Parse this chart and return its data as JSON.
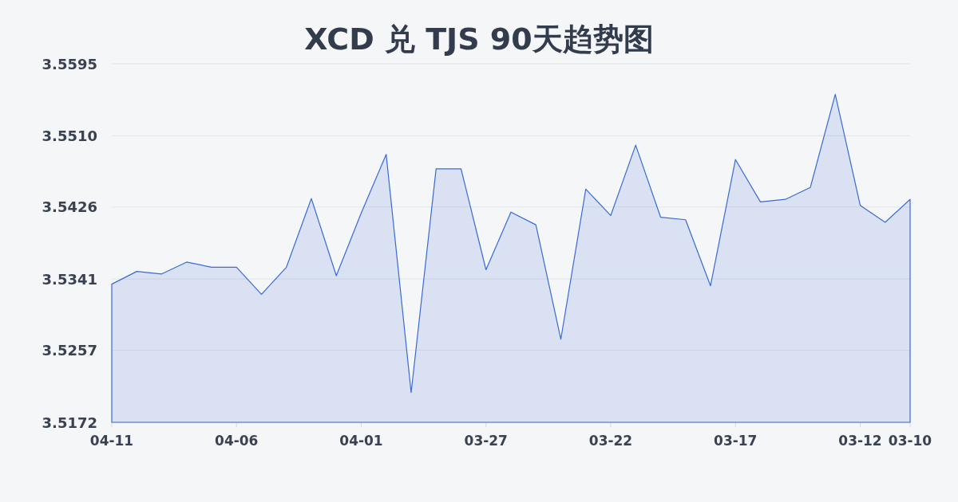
{
  "chart_data": {
    "type": "area",
    "title": "XCD 兑 TJS 90天趋势图",
    "categories": [
      "04-11",
      null,
      null,
      null,
      null,
      "04-06",
      null,
      null,
      null,
      null,
      "04-01",
      null,
      null,
      null,
      null,
      "03-27",
      null,
      null,
      null,
      null,
      "03-22",
      null,
      null,
      null,
      null,
      "03-17",
      null,
      null,
      null,
      null,
      "03-12",
      null,
      "03-10"
    ],
    "values": [
      3.5335,
      3.535,
      3.5347,
      3.5361,
      3.5355,
      3.5355,
      3.5323,
      3.5355,
      3.5436,
      3.5345,
      3.5419,
      3.5488,
      3.5207,
      3.5471,
      3.5471,
      3.5352,
      3.542,
      3.5405,
      3.527,
      3.5447,
      3.5416,
      3.5499,
      3.5414,
      3.5411,
      3.5333,
      3.5482,
      3.5432,
      3.5435,
      3.5449,
      3.5559,
      3.5428,
      3.5408,
      3.5435
    ],
    "color": "#3a6bd1",
    "ylim": [
      3.5172,
      3.5595
    ],
    "yticks": [
      3.5172,
      3.5257,
      3.5341,
      3.5426,
      {
        "value": 3.551,
        "label": "3.5510"
      },
      3.5595
    ],
    "grid": "y"
  }
}
